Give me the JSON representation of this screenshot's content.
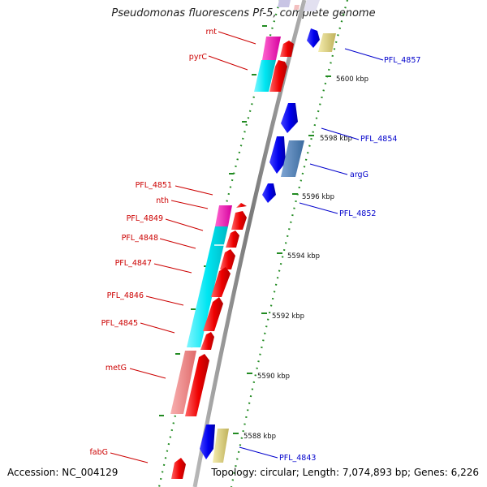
{
  "title": "Pseudomonas fluorescens Pf-5, complete genome",
  "accession": "Accession: NC_004129",
  "topology": "Topology: circular; Length: 7,074,893 bp; Genes: 6,226",
  "colors": {
    "backbone": "#808080",
    "forward_gene": "#ff0000",
    "reverse_gene": "#0000ff",
    "forward_label": "#cc0000",
    "reverse_label": "#0000cc",
    "tick": "#228b22",
    "arg": "#4f80b4",
    "khaki": "#d8cc7c",
    "operon_cyan": "#00e6f2",
    "operon_magenta": "#ee1ab4",
    "operon_pink": "#f08080"
  },
  "tick_labels": [
    "5600 kbp",
    "5598 kbp",
    "5596 kbp",
    "5594 kbp",
    "5592 kbp",
    "5590 kbp",
    "5588 kbp"
  ],
  "forward_labels": [
    "rnt",
    "pyrC",
    "PFL_4851",
    "nth",
    "PFL_4849",
    "PFL_4848",
    "PFL_4847",
    "PFL_4846",
    "PFL_4845",
    "metG",
    "fabG"
  ],
  "reverse_labels": [
    "PFL_4857",
    "PFL_4854",
    "argG",
    "PFL_4852",
    "PFL_4843"
  ]
}
